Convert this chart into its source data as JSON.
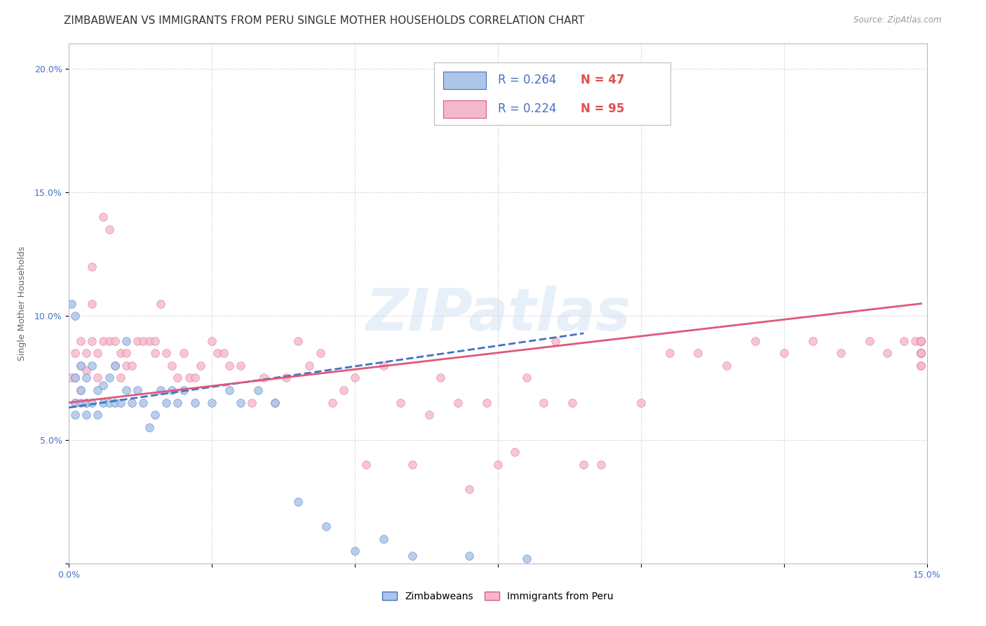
{
  "title": "ZIMBABWEAN VS IMMIGRANTS FROM PERU SINGLE MOTHER HOUSEHOLDS CORRELATION CHART",
  "source": "Source: ZipAtlas.com",
  "ylabel": "Single Mother Households",
  "xlim": [
    0.0,
    0.15
  ],
  "ylim": [
    0.0,
    0.21
  ],
  "xtick_vals": [
    0.0,
    0.025,
    0.05,
    0.075,
    0.1,
    0.125,
    0.15
  ],
  "ytick_vals": [
    0.0,
    0.05,
    0.1,
    0.15,
    0.2
  ],
  "series1_label": "Zimbabweans",
  "series2_label": "Immigrants from Peru",
  "R1": 0.264,
  "N1": 47,
  "R2": 0.224,
  "N2": 95,
  "color1": "#adc6e8",
  "color2": "#f4b8cc",
  "line1_color": "#4472c4",
  "line2_color": "#e05878",
  "line1_dash": "--",
  "line2_dash": "-",
  "title_fontsize": 11,
  "label_fontsize": 9,
  "tick_fontsize": 9,
  "watermark": "ZIPatlas",
  "background_color": "#ffffff",
  "grid_color": "#d0d0d0",
  "legend_R1_text": "R = 0.264",
  "legend_N1_text": "N = 47",
  "legend_R2_text": "R = 0.224",
  "legend_N2_text": "N = 95",
  "zim_x": [
    0.0005,
    0.001,
    0.001,
    0.001,
    0.001,
    0.002,
    0.002,
    0.002,
    0.003,
    0.003,
    0.003,
    0.004,
    0.004,
    0.005,
    0.005,
    0.006,
    0.006,
    0.007,
    0.007,
    0.008,
    0.008,
    0.009,
    0.01,
    0.01,
    0.011,
    0.012,
    0.013,
    0.014,
    0.015,
    0.016,
    0.017,
    0.018,
    0.019,
    0.02,
    0.022,
    0.025,
    0.028,
    0.03,
    0.033,
    0.036,
    0.04,
    0.045,
    0.05,
    0.055,
    0.06,
    0.07,
    0.08
  ],
  "zim_y": [
    0.105,
    0.1,
    0.075,
    0.065,
    0.06,
    0.08,
    0.07,
    0.065,
    0.075,
    0.065,
    0.06,
    0.08,
    0.065,
    0.07,
    0.06,
    0.072,
    0.065,
    0.075,
    0.065,
    0.08,
    0.065,
    0.065,
    0.07,
    0.09,
    0.065,
    0.07,
    0.065,
    0.055,
    0.06,
    0.07,
    0.065,
    0.07,
    0.065,
    0.07,
    0.065,
    0.065,
    0.07,
    0.065,
    0.07,
    0.065,
    0.025,
    0.015,
    0.005,
    0.01,
    0.003,
    0.003,
    0.002
  ],
  "peru_x": [
    0.0005,
    0.001,
    0.001,
    0.001,
    0.002,
    0.002,
    0.002,
    0.003,
    0.003,
    0.003,
    0.004,
    0.004,
    0.004,
    0.005,
    0.005,
    0.006,
    0.006,
    0.007,
    0.007,
    0.008,
    0.008,
    0.009,
    0.009,
    0.01,
    0.01,
    0.011,
    0.012,
    0.013,
    0.014,
    0.015,
    0.015,
    0.016,
    0.017,
    0.018,
    0.019,
    0.02,
    0.021,
    0.022,
    0.023,
    0.025,
    0.026,
    0.027,
    0.028,
    0.03,
    0.032,
    0.034,
    0.036,
    0.038,
    0.04,
    0.042,
    0.044,
    0.046,
    0.048,
    0.05,
    0.052,
    0.055,
    0.058,
    0.06,
    0.063,
    0.065,
    0.068,
    0.07,
    0.073,
    0.075,
    0.078,
    0.08,
    0.083,
    0.085,
    0.088,
    0.09,
    0.093,
    0.095,
    0.1,
    0.105,
    0.11,
    0.115,
    0.12,
    0.125,
    0.13,
    0.135,
    0.14,
    0.143,
    0.146,
    0.148,
    0.149,
    0.149,
    0.149,
    0.149,
    0.149,
    0.149,
    0.149,
    0.149,
    0.149,
    0.149,
    0.149
  ],
  "peru_y": [
    0.075,
    0.085,
    0.075,
    0.065,
    0.09,
    0.08,
    0.07,
    0.085,
    0.078,
    0.065,
    0.12,
    0.105,
    0.09,
    0.085,
    0.075,
    0.14,
    0.09,
    0.135,
    0.09,
    0.09,
    0.08,
    0.085,
    0.075,
    0.085,
    0.08,
    0.08,
    0.09,
    0.09,
    0.09,
    0.09,
    0.085,
    0.105,
    0.085,
    0.08,
    0.075,
    0.085,
    0.075,
    0.075,
    0.08,
    0.09,
    0.085,
    0.085,
    0.08,
    0.08,
    0.065,
    0.075,
    0.065,
    0.075,
    0.09,
    0.08,
    0.085,
    0.065,
    0.07,
    0.075,
    0.04,
    0.08,
    0.065,
    0.04,
    0.06,
    0.075,
    0.065,
    0.03,
    0.065,
    0.04,
    0.045,
    0.075,
    0.065,
    0.09,
    0.065,
    0.04,
    0.04,
    0.19,
    0.065,
    0.085,
    0.085,
    0.08,
    0.09,
    0.085,
    0.09,
    0.085,
    0.09,
    0.085,
    0.09,
    0.09,
    0.085,
    0.08,
    0.09,
    0.085,
    0.09,
    0.085,
    0.09,
    0.085,
    0.08,
    0.085,
    0.09
  ],
  "line1_x": [
    0.0,
    0.09
  ],
  "line1_y": [
    0.063,
    0.093
  ],
  "line2_x": [
    0.0,
    0.149
  ],
  "line2_y": [
    0.065,
    0.105
  ]
}
